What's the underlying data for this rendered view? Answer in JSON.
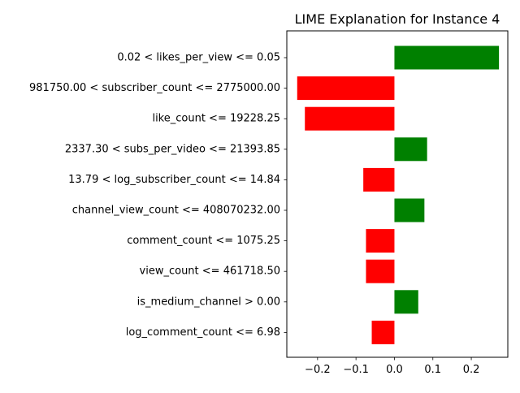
{
  "chart_data": {
    "type": "bar",
    "orientation": "horizontal",
    "title": "LIME Explanation for Instance 4",
    "xlabel": "",
    "ylabel": "",
    "xlim": [
      -0.28,
      0.295
    ],
    "xticks": [
      -0.2,
      -0.1,
      0.0,
      0.1,
      0.2
    ],
    "xtick_labels": [
      "−0.2",
      "−0.1",
      "0.0",
      "0.1",
      "0.2"
    ],
    "grid": false,
    "legend": "none",
    "categories": [
      "0.02 < likes_per_view <= 0.05",
      "981750.00 < subscriber_count <= 2775000.00",
      "like_count <= 19228.25",
      "2337.30 < subs_per_video <= 21393.85",
      "13.79 < log_subscriber_count <= 14.84",
      "channel_view_count <= 408070232.00",
      "comment_count <= 1075.25",
      "view_count <= 461718.50",
      "is_medium_channel > 0.00",
      "log_comment_count <= 6.98"
    ],
    "values": [
      0.272,
      -0.253,
      -0.233,
      0.085,
      -0.081,
      0.078,
      -0.074,
      -0.074,
      0.062,
      -0.059
    ],
    "colors": {
      "positive": "#008000",
      "negative": "#ff0000",
      "axis": "#000000"
    }
  }
}
